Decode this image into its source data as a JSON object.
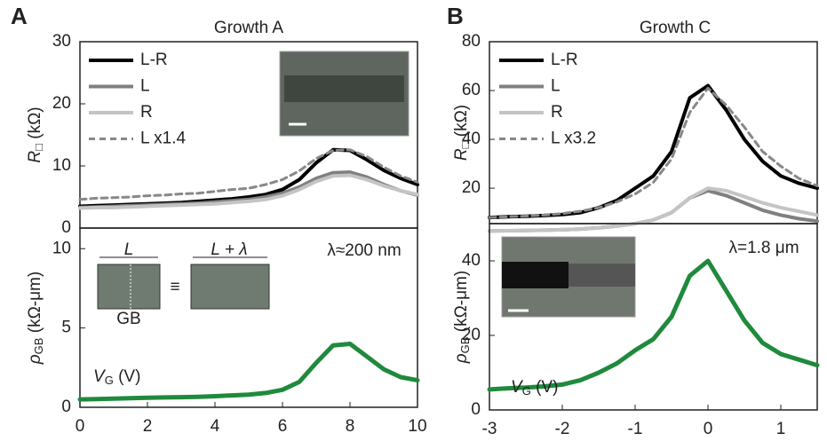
{
  "chart_data": [
    {
      "type": "line",
      "panel": "A",
      "title": "Growth A",
      "ylabel": {
        "main": "R",
        "sub": "□",
        "rest": " (kΩ)"
      },
      "x": [
        0,
        0.5,
        1,
        1.5,
        2,
        2.5,
        3,
        3.5,
        4,
        4.5,
        5,
        5.5,
        6,
        6.5,
        7,
        7.5,
        8,
        8.5,
        9,
        9.5,
        10
      ],
      "xlim": [
        0,
        10
      ],
      "ylim": [
        0,
        30
      ],
      "yticks": [
        0,
        10,
        20,
        30
      ],
      "legend": "top-left",
      "series": [
        {
          "name": "L-R",
          "color": "#000000",
          "values": [
            3.5,
            3.6,
            3.7,
            3.8,
            3.9,
            4.0,
            4.1,
            4.3,
            4.5,
            4.7,
            5.0,
            5.4,
            6.2,
            7.8,
            10.5,
            12.6,
            12.5,
            11,
            9.3,
            8,
            7
          ]
        },
        {
          "name": "L",
          "color": "#808080",
          "values": [
            3.3,
            3.4,
            3.5,
            3.6,
            3.7,
            3.8,
            3.9,
            4.0,
            4.2,
            4.4,
            4.6,
            5.0,
            5.6,
            6.6,
            8.0,
            8.9,
            9.0,
            8.2,
            7.0,
            6.0,
            5.3
          ]
        },
        {
          "name": "R",
          "color": "#c4c4c4",
          "values": [
            3.2,
            3.3,
            3.3,
            3.4,
            3.5,
            3.6,
            3.7,
            3.8,
            3.9,
            4.1,
            4.3,
            4.6,
            5.2,
            6.2,
            7.5,
            8.4,
            8.5,
            7.8,
            6.8,
            6.0,
            5.4
          ]
        },
        {
          "name": "L x1.4",
          "color": "#888888",
          "dashed": true,
          "values": [
            4.6,
            4.8,
            4.9,
            5.0,
            5.2,
            5.3,
            5.5,
            5.6,
            5.9,
            6.2,
            6.4,
            7.0,
            7.8,
            9.2,
            11.2,
            12.5,
            12.6,
            11.5,
            9.8,
            8.4,
            7.4
          ]
        }
      ]
    },
    {
      "type": "line",
      "ylabel": {
        "main": "ρ",
        "sub": "GB",
        "rest": " (kΩ-μm)"
      },
      "xlabel": {
        "main": "V",
        "sub": "G",
        "rest": " (V)"
      },
      "note": "λ≈200 nm",
      "inset_labels": [
        "L",
        "L + λ",
        "GB",
        "≡"
      ],
      "x": [
        0,
        0.5,
        1,
        1.5,
        2,
        2.5,
        3,
        3.5,
        4,
        4.5,
        5,
        5.5,
        6,
        6.5,
        7,
        7.5,
        8,
        8.5,
        9,
        9.5,
        10
      ],
      "xlim": [
        0,
        10
      ],
      "xticks": [
        0,
        2,
        4,
        6,
        8,
        10
      ],
      "ylim": [
        0,
        11.3
      ],
      "yticks": [
        0,
        5,
        10
      ],
      "series": [
        {
          "color": "#1f8a3c",
          "values": [
            0.5,
            0.52,
            0.55,
            0.57,
            0.6,
            0.62,
            0.64,
            0.66,
            0.7,
            0.75,
            0.8,
            0.9,
            1.1,
            1.6,
            2.8,
            3.9,
            4.0,
            3.2,
            2.4,
            1.9,
            1.7
          ]
        }
      ]
    },
    {
      "type": "line",
      "panel": "B",
      "title": "Growth C",
      "ylabel": {
        "main": "R",
        "sub": "□",
        "rest": " (kΩ)"
      },
      "x": [
        -3,
        -2.75,
        -2.5,
        -2.25,
        -2,
        -1.75,
        -1.5,
        -1.25,
        -1,
        -0.75,
        -0.5,
        -0.25,
        0,
        0.25,
        0.5,
        0.75,
        1,
        1.25,
        1.5
      ],
      "xlim": [
        -3,
        1.5
      ],
      "ylim": [
        5.5,
        80
      ],
      "yticks": [
        20,
        40,
        60,
        80
      ],
      "legend": "top-left",
      "series": [
        {
          "name": "L-R",
          "color": "#000000",
          "values": [
            8,
            8.3,
            8.5,
            8.8,
            9.2,
            10,
            12,
            15,
            20,
            25,
            35,
            57,
            62,
            52,
            40,
            31,
            25,
            22,
            20
          ]
        },
        {
          "name": "L",
          "color": "#808080",
          "values": [
            2.5,
            2.6,
            2.7,
            2.8,
            3,
            3.3,
            3.8,
            4.5,
            5.5,
            7,
            10,
            16,
            19,
            17,
            14,
            11,
            9,
            7.5,
            6.5
          ]
        },
        {
          "name": "R",
          "color": "#c4c4c4",
          "values": [
            2.5,
            2.6,
            2.7,
            2.8,
            3,
            3.3,
            3.8,
            4.5,
            5.5,
            7,
            10,
            16,
            20,
            19,
            16.5,
            14,
            12,
            10.5,
            9
          ]
        },
        {
          "name": "L x3.2",
          "color": "#888888",
          "dashed": true,
          "values": [
            8,
            8.3,
            8.6,
            9,
            9.6,
            10.6,
            12,
            14.4,
            17.6,
            22.4,
            32,
            51,
            61,
            54,
            45,
            35,
            29,
            24,
            21
          ]
        }
      ]
    },
    {
      "type": "line",
      "ylabel": {
        "main": "ρ",
        "sub": "GB",
        "rest": " (kΩ-μm)"
      },
      "xlabel": {
        "main": "V",
        "sub": "G",
        "rest": " (V)"
      },
      "note": "λ=1.8 μm",
      "x": [
        -3,
        -2.75,
        -2.5,
        -2.25,
        -2,
        -1.75,
        -1.5,
        -1.25,
        -1,
        -0.75,
        -0.5,
        -0.25,
        0,
        0.25,
        0.5,
        0.75,
        1,
        1.25,
        1.5
      ],
      "xlim": [
        -3,
        1.5
      ],
      "xticks": [
        -3,
        -2,
        -1,
        0,
        1
      ],
      "ylim": [
        0,
        50
      ],
      "yticks": [
        0,
        20,
        40
      ],
      "series": [
        {
          "color": "#1f8a3c",
          "values": [
            5.5,
            5.8,
            6,
            6.3,
            6.8,
            8,
            10,
            12.5,
            16,
            19,
            25,
            36,
            40,
            32,
            24,
            18,
            15,
            13.5,
            12
          ]
        }
      ]
    }
  ]
}
